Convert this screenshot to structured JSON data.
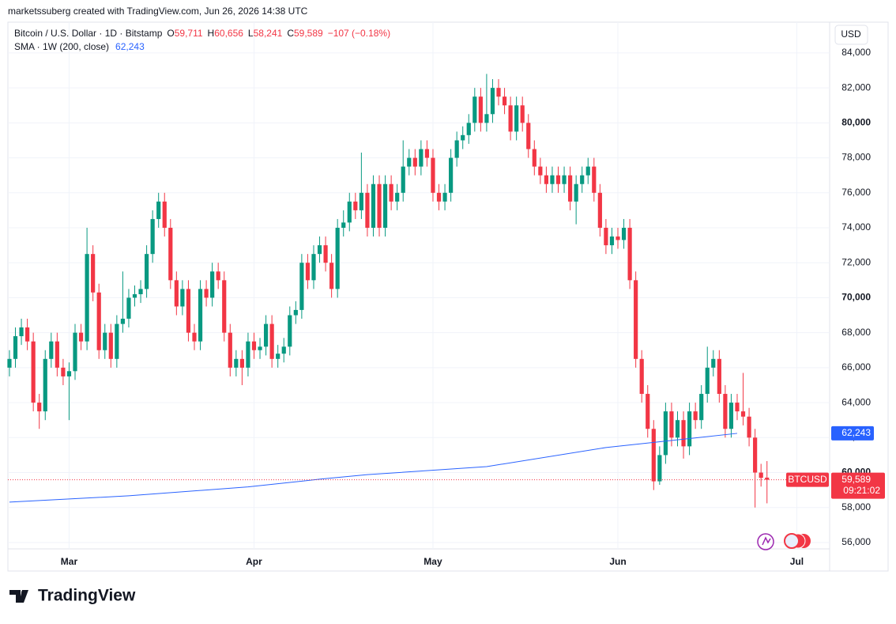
{
  "header": "marketssuberg created with TradingView.com, Jun 26, 2026 14:38 UTC",
  "brand": "TradingView",
  "chart_data": {
    "type": "candlestick",
    "title": "Bitcoin / U.S. Dollar · 1D · Bitstamp",
    "legend": [
      {
        "key": "O",
        "label": "59,711"
      },
      {
        "key": "H",
        "label": "60,656"
      },
      {
        "key": "L",
        "label": "58,241"
      },
      {
        "key": "C",
        "label": "59,589"
      }
    ],
    "change": "−107 (−0.18%)",
    "currency": "USD",
    "symbol": "BTCUSD",
    "countdown": "09:21:02",
    "last_label": "59,589",
    "up_color": "#089981",
    "down_color": "#f23645",
    "open": [
      66000,
      66500,
      67800,
      68300,
      67500,
      64000,
      63500,
      66500,
      67500,
      66000,
      65500,
      65800,
      68000,
      67500,
      72500,
      70300,
      67000,
      68000,
      66500,
      68500,
      68800,
      70000,
      70200,
      70500,
      72500,
      74500,
      75500,
      74000,
      71000,
      69500,
      70500,
      68000,
      67500,
      70500,
      70000,
      71500,
      71000,
      68000,
      66000,
      66500,
      66000,
      67500,
      67000,
      67200,
      68500,
      66500,
      66800,
      67200,
      69000,
      69300,
      72000,
      71000,
      72500,
      73000,
      72000,
      70500,
      74000,
      74300,
      75500,
      75000,
      76000,
      74000,
      76500,
      74000,
      76500,
      75500,
      76000,
      77500,
      78000,
      77500,
      78500,
      78000,
      76000,
      75500,
      76000,
      78000,
      79000,
      79300,
      80000,
      81500,
      80000,
      80500,
      82000,
      81500,
      81000,
      79500,
      81000,
      80000,
      78500,
      77500,
      77000,
      76500,
      77000,
      76500,
      77000,
      75500,
      76500,
      77000,
      77500,
      76000,
      74000,
      73000,
      73500,
      73300,
      74000,
      71000,
      66500,
      64500,
      62500,
      59500,
      61000,
      63500,
      62000,
      63000,
      61500,
      63500,
      63000,
      64500,
      66000,
      66500,
      64500,
      62500,
      64000,
      63500,
      63200,
      62000,
      60000,
      59711
    ],
    "high": [
      67000,
      68300,
      68800,
      68800,
      68000,
      64500,
      67000,
      68000,
      68000,
      66500,
      66300,
      68500,
      68500,
      74000,
      73000,
      70800,
      68500,
      68500,
      69000,
      71500,
      70500,
      70700,
      71000,
      73000,
      75000,
      76000,
      76000,
      74500,
      71500,
      71000,
      71000,
      68500,
      71000,
      71000,
      72000,
      72000,
      71500,
      68500,
      67000,
      67000,
      68000,
      68000,
      67700,
      69000,
      69000,
      67300,
      67700,
      69500,
      69800,
      72500,
      72500,
      73000,
      73500,
      73500,
      72500,
      74500,
      75000,
      76000,
      76000,
      78300,
      76500,
      77000,
      77000,
      77000,
      77000,
      76500,
      79000,
      78500,
      78500,
      79000,
      79000,
      78500,
      76500,
      76500,
      78500,
      79500,
      79800,
      80500,
      82000,
      82000,
      82800,
      82500,
      82500,
      82000,
      81500,
      81500,
      81500,
      80500,
      79000,
      78000,
      77500,
      77500,
      77500,
      77500,
      77500,
      77000,
      77500,
      78000,
      78000,
      76500,
      74500,
      74000,
      74000,
      74500,
      74500,
      71500,
      67000,
      65000,
      63000,
      61500,
      64000,
      64000,
      63500,
      63500,
      64000,
      64000,
      65000,
      67200,
      67000,
      67000,
      65000,
      64500,
      64500,
      65700,
      63700,
      62500,
      60500,
      60656
    ],
    "low": [
      65500,
      66000,
      67300,
      67000,
      63500,
      62500,
      63000,
      66000,
      65500,
      65000,
      63000,
      65300,
      67000,
      67000,
      69800,
      66500,
      66500,
      66000,
      66000,
      68000,
      68300,
      69500,
      69700,
      70000,
      72000,
      74000,
      73500,
      70500,
      69000,
      69000,
      67500,
      67000,
      67000,
      69500,
      69500,
      70500,
      67500,
      65500,
      65500,
      65000,
      65500,
      66500,
      66500,
      66700,
      66000,
      66000,
      66300,
      66700,
      68500,
      68800,
      70500,
      70500,
      72000,
      71500,
      70000,
      70000,
      73500,
      73800,
      74500,
      74500,
      73500,
      73500,
      73500,
      73500,
      75000,
      75000,
      75500,
      77000,
      77000,
      77000,
      77500,
      75500,
      75000,
      75000,
      75500,
      77500,
      78500,
      78800,
      79500,
      79500,
      79500,
      80000,
      81000,
      80500,
      79000,
      79000,
      79500,
      78000,
      77000,
      76500,
      76000,
      76000,
      76000,
      76000,
      75000,
      74200,
      76000,
      76500,
      75500,
      73500,
      72500,
      72500,
      72800,
      72800,
      70500,
      66000,
      64000,
      62000,
      59000,
      59300,
      60500,
      61500,
      61500,
      60800,
      61000,
      62500,
      62500,
      64000,
      65500,
      64000,
      62000,
      62000,
      63000,
      62700,
      61500,
      58000,
      59200,
      58241
    ],
    "close": [
      66500,
      67800,
      68300,
      67500,
      64000,
      63500,
      66500,
      67500,
      66000,
      65500,
      65800,
      68000,
      67500,
      72500,
      70300,
      67000,
      68000,
      66500,
      68500,
      68800,
      70000,
      70200,
      70500,
      72500,
      74500,
      75500,
      74000,
      71000,
      69500,
      70500,
      68000,
      67500,
      70500,
      70000,
      71500,
      71000,
      68000,
      66000,
      66500,
      66000,
      67500,
      67000,
      67200,
      68500,
      66500,
      66800,
      67200,
      69000,
      69300,
      72000,
      71000,
      72500,
      73000,
      72000,
      70500,
      74000,
      74300,
      75500,
      75000,
      76000,
      74000,
      76500,
      74000,
      76500,
      75500,
      76000,
      77500,
      78000,
      77500,
      78500,
      78000,
      76000,
      75500,
      76000,
      78000,
      79000,
      79300,
      80000,
      81500,
      80000,
      80500,
      82000,
      81500,
      81000,
      79500,
      81000,
      80000,
      78500,
      77500,
      77000,
      76500,
      77000,
      76500,
      77000,
      75500,
      76500,
      77000,
      77500,
      76000,
      74000,
      73000,
      73500,
      73300,
      74000,
      71000,
      66500,
      64500,
      62500,
      59500,
      61000,
      63500,
      62000,
      63000,
      61500,
      63500,
      63000,
      64500,
      66000,
      66500,
      64500,
      62500,
      64000,
      63500,
      63200,
      62000,
      60000,
      59696,
      59589
    ],
    "last": 59589,
    "indicator": {
      "name": "SMA · 1W (200, close)",
      "color": "#2962ff",
      "x": [
        0,
        20,
        40,
        52,
        60,
        80,
        100,
        122
      ],
      "values": [
        58310,
        58670,
        59180,
        59620,
        59880,
        60340,
        61430,
        62243
      ],
      "value_label": "62,243"
    },
    "xlim": [
      -0.26,
      137.5
    ],
    "xticks": [
      {
        "value": 10,
        "label": "Mar"
      },
      {
        "value": 41,
        "label": "Apr"
      },
      {
        "value": 71,
        "label": "May"
      },
      {
        "value": 102,
        "label": "Jun"
      },
      {
        "value": 132,
        "label": "Jul"
      }
    ],
    "ylim": [
      54370,
      85760
    ],
    "yticks": [
      {
        "value": 56000,
        "label": "56,000"
      },
      {
        "value": 58000,
        "label": "58,000"
      },
      {
        "value": 60000,
        "label": "60,000"
      },
      {
        "value": 62000,
        "label": "62,000"
      },
      {
        "value": 64000,
        "label": "64,000"
      },
      {
        "value": 66000,
        "label": "66,000"
      },
      {
        "value": 68000,
        "label": "68,000"
      },
      {
        "value": 70000,
        "label": "70,000"
      },
      {
        "value": 72000,
        "label": "72,000"
      },
      {
        "value": 74000,
        "label": "74,000"
      },
      {
        "value": 76000,
        "label": "76,000"
      },
      {
        "value": 78000,
        "label": "78,000"
      },
      {
        "value": 80000,
        "label": "80,000"
      },
      {
        "value": 82000,
        "label": "82,000"
      },
      {
        "value": 84000,
        "label": "84,000"
      }
    ],
    "grid": true
  }
}
